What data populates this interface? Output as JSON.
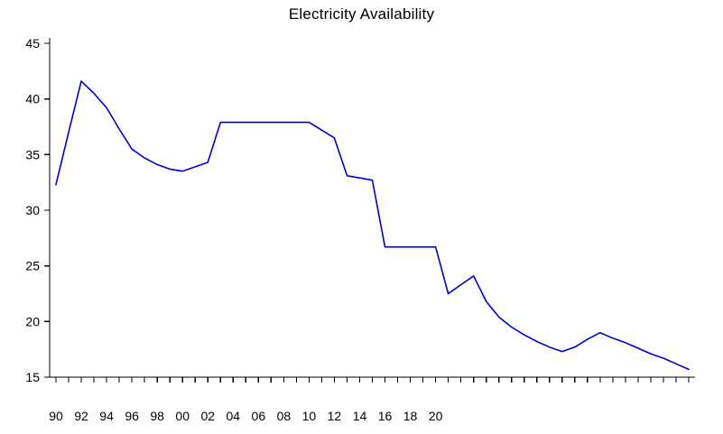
{
  "page": {
    "background": "#ffffff"
  },
  "chart_data": {
    "type": "line",
    "title": "Electricity Availability",
    "xlabel": "",
    "ylabel": "",
    "grid": false,
    "legend": "none",
    "line_color": "#0000CC",
    "axis_color": "#000000",
    "xlim": [
      1989.5,
      2040.5
    ],
    "ylim": [
      15,
      45
    ],
    "y_ticks": [
      15,
      20,
      25,
      30,
      35,
      40,
      45
    ],
    "x_minor_tick_interval": 1,
    "x_label_years": [
      1990,
      1992,
      1994,
      1996,
      1998,
      2000,
      2002,
      2004,
      2006,
      2008,
      2010,
      2012,
      2014,
      2016,
      2018,
      2020
    ],
    "x_tick_labels": [
      "90",
      "92",
      "94",
      "96",
      "98",
      "00",
      "02",
      "04",
      "06",
      "08",
      "10",
      "12",
      "14",
      "16",
      "18",
      "20"
    ],
    "series": [
      {
        "name": "Electricity Availability",
        "color": "#0000CC",
        "x": [
          1990,
          1991,
          1992,
          1993,
          1994,
          1995,
          1996,
          1997,
          1998,
          1999,
          2000,
          2001,
          2002,
          2003,
          2004,
          2005,
          2006,
          2007,
          2008,
          2009,
          2010,
          2011,
          2012,
          2013,
          2014,
          2015,
          2016,
          2017,
          2018,
          2019,
          2020,
          2021,
          2022,
          2023,
          2024,
          2025,
          2026,
          2027,
          2028,
          2029,
          2030,
          2031,
          2032,
          2033,
          2034,
          2035,
          2036,
          2037,
          2038,
          2039,
          2040
        ],
        "values": [
          32.3,
          37.0,
          41.6,
          40.5,
          39.2,
          37.3,
          35.5,
          34.7,
          34.1,
          33.7,
          33.5,
          33.9,
          34.3,
          37.9,
          37.9,
          37.9,
          37.9,
          37.9,
          37.9,
          37.9,
          37.9,
          37.2,
          36.5,
          33.1,
          32.9,
          32.7,
          26.7,
          26.7,
          26.7,
          26.7,
          26.7,
          22.5,
          23.3,
          24.1,
          21.8,
          20.4,
          19.5,
          18.8,
          18.2,
          17.7,
          17.3,
          17.7,
          18.4,
          19.0,
          18.5,
          18.1,
          17.6,
          17.1,
          16.7,
          16.2,
          15.7
        ]
      }
    ]
  }
}
